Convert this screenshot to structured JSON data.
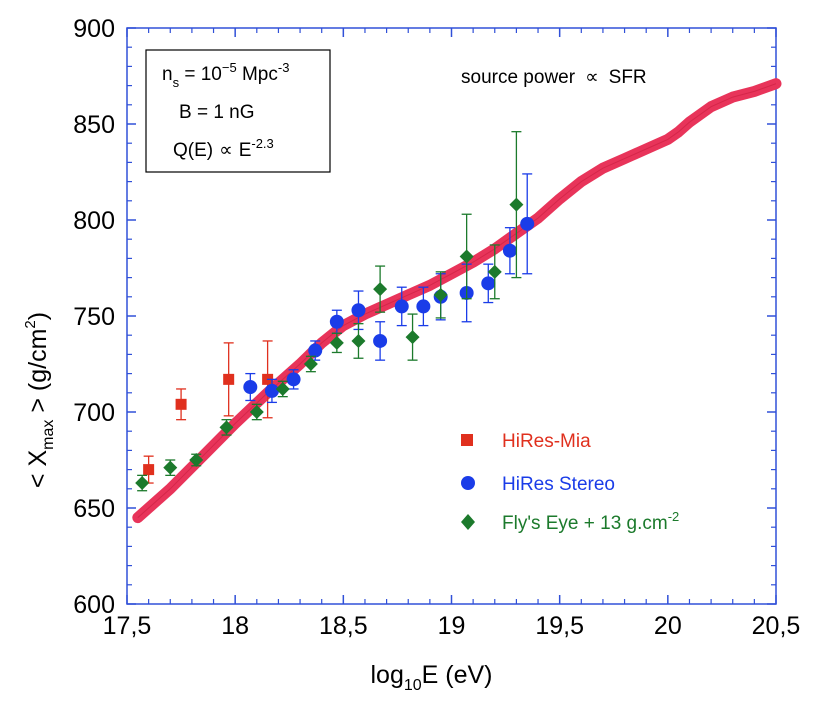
{
  "chart_data": {
    "type": "scatter",
    "xlabel_main": "log",
    "xlabel_sub": "10",
    "xlabel_tail": "E (eV)",
    "ylabel_pre": "< X",
    "ylabel_sub": "max",
    "ylabel_post": " > (g/cm",
    "ylabel_sup": "2",
    "ylabel_end": ")",
    "xlim": [
      17.5,
      20.5
    ],
    "ylim": [
      600,
      900
    ],
    "xticks": [
      17.5,
      18,
      18.5,
      19,
      19.5,
      20,
      20.5
    ],
    "xtick_labels": [
      "17,5",
      "18",
      "18,5",
      "19",
      "19,5",
      "20",
      "20,5"
    ],
    "yticks": [
      600,
      650,
      700,
      750,
      800,
      850,
      900
    ],
    "ytick_labels": [
      "600",
      "650",
      "700",
      "750",
      "800",
      "850",
      "900"
    ],
    "annotation": {
      "text": "source power",
      "symbol": "∝",
      "text2": "SFR"
    },
    "info_box": {
      "line1_n": "n",
      "line1_sub": "s",
      "line1_eq": " = 10",
      "line1_exp": "−5",
      "line1_unit": " Mpc",
      "line1_unit_exp": "-3",
      "line2": "B = 1 nG",
      "line3_pre": "Q(E)",
      "line3_symbol": "∝",
      "line3_post": "E",
      "line3_exp": "-2.3"
    },
    "model_curve": {
      "name": "model",
      "color": "#e8345a",
      "x": [
        17.55,
        17.7,
        17.85,
        18.0,
        18.15,
        18.3,
        18.4,
        18.5,
        18.6,
        18.7,
        18.8,
        18.9,
        19.0,
        19.1,
        19.2,
        19.3,
        19.4,
        19.5,
        19.6,
        19.7,
        19.8,
        19.9,
        20.0,
        20.05,
        20.1,
        20.2,
        20.3,
        20.4,
        20.5
      ],
      "y": [
        645,
        660,
        677,
        694,
        710,
        725,
        736,
        745,
        751,
        756,
        761,
        766,
        772,
        778,
        785,
        793,
        801,
        811,
        820,
        827,
        832,
        837,
        842,
        846,
        851,
        859,
        864,
        867,
        871
      ]
    },
    "series": [
      {
        "name": "HiRes-Mia",
        "color": "#e0301e",
        "marker": "square",
        "points": [
          {
            "x": 17.6,
            "y": 670,
            "err": 7
          },
          {
            "x": 17.75,
            "y": 704,
            "err": 8
          },
          {
            "x": 17.97,
            "y": 717,
            "err": 19
          },
          {
            "x": 18.15,
            "y": 717,
            "err": 20
          }
        ]
      },
      {
        "name": "HiRes Stereo",
        "color": "#1a3ce8",
        "marker": "circle",
        "points": [
          {
            "x": 18.07,
            "y": 713,
            "err": 7
          },
          {
            "x": 18.17,
            "y": 711,
            "err": 6
          },
          {
            "x": 18.27,
            "y": 717,
            "err": 5
          },
          {
            "x": 18.37,
            "y": 732,
            "err": 5
          },
          {
            "x": 18.47,
            "y": 747,
            "err": 6
          },
          {
            "x": 18.57,
            "y": 753,
            "err": 10
          },
          {
            "x": 18.67,
            "y": 737,
            "err": 10
          },
          {
            "x": 18.77,
            "y": 755,
            "err": 10
          },
          {
            "x": 18.87,
            "y": 755,
            "err": 10
          },
          {
            "x": 18.95,
            "y": 760,
            "err": 12
          },
          {
            "x": 19.07,
            "y": 762,
            "err": 15
          },
          {
            "x": 19.17,
            "y": 767,
            "err": 10
          },
          {
            "x": 19.27,
            "y": 784,
            "err": 12
          },
          {
            "x": 19.35,
            "y": 798,
            "err": 26
          }
        ]
      },
      {
        "name": "Fly's Eye + 13 g.cm",
        "name_sup": "-2",
        "color": "#1c7a2c",
        "marker": "diamond",
        "points": [
          {
            "x": 17.57,
            "y": 663,
            "err": 4
          },
          {
            "x": 17.7,
            "y": 671,
            "err": 4
          },
          {
            "x": 17.82,
            "y": 675,
            "err": 3
          },
          {
            "x": 17.96,
            "y": 692,
            "err": 4
          },
          {
            "x": 18.1,
            "y": 700,
            "err": 4
          },
          {
            "x": 18.22,
            "y": 712,
            "err": 4
          },
          {
            "x": 18.35,
            "y": 725,
            "err": 4
          },
          {
            "x": 18.47,
            "y": 736,
            "err": 5
          },
          {
            "x": 18.57,
            "y": 737,
            "err": 9
          },
          {
            "x": 18.67,
            "y": 764,
            "err": 12
          },
          {
            "x": 18.82,
            "y": 739,
            "err": 12
          },
          {
            "x": 18.95,
            "y": 761,
            "err": 12
          },
          {
            "x": 19.07,
            "y": 781,
            "err": 22
          },
          {
            "x": 19.2,
            "y": 773,
            "err": 14
          },
          {
            "x": 19.3,
            "y": 808,
            "err": 38
          }
        ]
      }
    ]
  }
}
